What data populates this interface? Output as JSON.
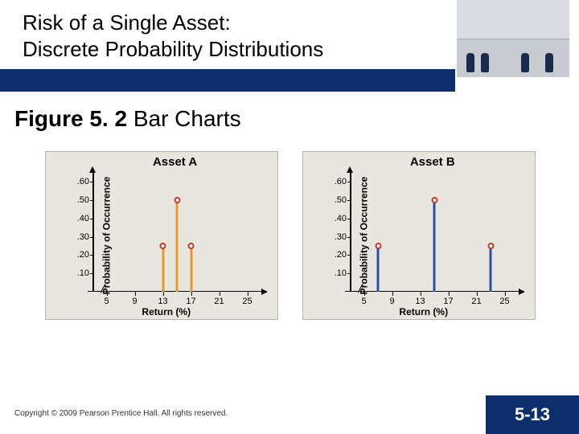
{
  "header": {
    "title_line1": "Risk of a Single Asset:",
    "title_line2": "Discrete Probability Distributions",
    "bar_color": "#0c2e6d"
  },
  "figure": {
    "label_bold": "Figure 5. 2",
    "label_rest": "  Bar Charts"
  },
  "charts": {
    "panel_bg": "#e9e6df",
    "panel_border": "#b6b3ab",
    "ylabel": "Probability of Occurrence",
    "xlabel": "Return (%)",
    "x_ticks": [
      5,
      9,
      13,
      17,
      21,
      25
    ],
    "y_ticks": [
      0.1,
      0.2,
      0.3,
      0.4,
      0.5,
      0.6
    ],
    "y_tick_labels": [
      ".10",
      ".20",
      ".30",
      ".40",
      ".50",
      ".60"
    ],
    "x_range": [
      3,
      27
    ],
    "y_range": [
      0,
      0.65
    ],
    "marker_fill": "#ffffff",
    "marker_stroke": "#c0392b",
    "asset_a": {
      "title": "Asset A",
      "bar_color": "#e29a2f",
      "bars": [
        {
          "x": 13,
          "y": 0.25
        },
        {
          "x": 15,
          "y": 0.5
        },
        {
          "x": 17,
          "y": 0.25
        }
      ]
    },
    "asset_b": {
      "title": "Asset B",
      "bar_color": "#2953a6",
      "bars": [
        {
          "x": 7,
          "y": 0.25
        },
        {
          "x": 15,
          "y": 0.5
        },
        {
          "x": 23,
          "y": 0.25
        }
      ]
    }
  },
  "footer": {
    "copyright": "Copyright © 2009 Pearson Prentice Hall. All rights reserved.",
    "page": "5-13",
    "page_bg": "#0c2e6d"
  }
}
